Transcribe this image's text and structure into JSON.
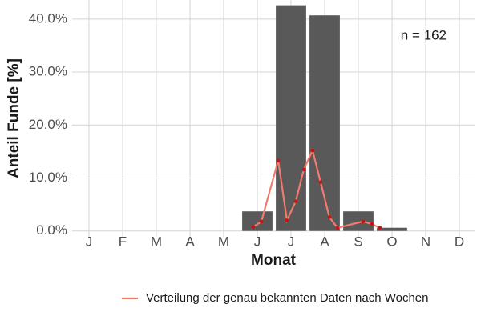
{
  "chart_data": {
    "type": "bar",
    "y_label": "Anteil Funde [%]",
    "x_label": "Monat",
    "annotation": "n = 162",
    "categories": [
      "J",
      "F",
      "M",
      "A",
      "M",
      "J",
      "J",
      "A",
      "S",
      "O",
      "N",
      "D"
    ],
    "values": [
      0,
      0,
      0,
      0,
      0,
      3.7,
      42.6,
      40.7,
      3.7,
      0.6,
      0,
      0
    ],
    "color": "#595959",
    "ylim": [
      -1.1,
      43.6
    ],
    "yticks": [
      {
        "value": 0,
        "label": "0.0%"
      },
      {
        "value": 10,
        "label": "10.0%"
      },
      {
        "value": 20,
        "label": "20.0%"
      },
      {
        "value": 30,
        "label": "30.0%"
      },
      {
        "value": 40,
        "label": "40.0%"
      }
    ],
    "grid": true,
    "legend": "bottom",
    "series": [
      {
        "name": "Verteilung der genau bekannten Daten nach Wochen",
        "type": "line",
        "color": "#f07b6e",
        "point_color": "#cc1111",
        "x": [
          5.88,
          6.12,
          6.62,
          6.88,
          7.14,
          7.38,
          7.64,
          7.88,
          8.14,
          8.38,
          9.14,
          9.4,
          9.64
        ],
        "values": [
          0.75,
          1.8,
          13.3,
          2.0,
          5.6,
          11.6,
          15.2,
          9.2,
          2.6,
          0.6,
          1.8,
          1.3,
          0.6
        ]
      }
    ]
  }
}
